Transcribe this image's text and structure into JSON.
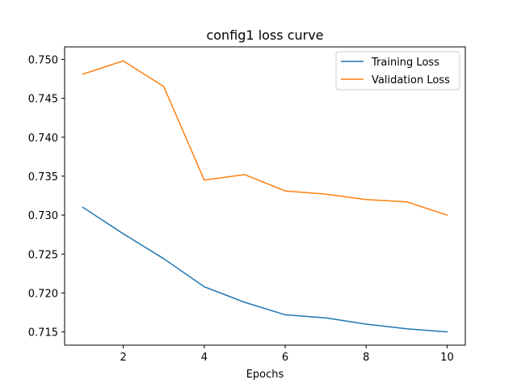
{
  "chart_data": {
    "type": "line",
    "title": "config1 loss curve",
    "xlabel": "Epochs",
    "ylabel": "",
    "xlim": [
      0.55,
      10.45
    ],
    "ylim": [
      0.7133,
      0.7516
    ],
    "x_ticks": [
      2,
      4,
      6,
      8,
      10
    ],
    "y_ticks": [
      0.715,
      0.72,
      0.725,
      0.73,
      0.735,
      0.74,
      0.745,
      0.75
    ],
    "y_tick_labels": [
      "0.715",
      "0.720",
      "0.725",
      "0.730",
      "0.735",
      "0.740",
      "0.745",
      "0.750"
    ],
    "grid": false,
    "legend_position": "top-right",
    "x": [
      1,
      2,
      3,
      4,
      5,
      6,
      7,
      8,
      9,
      10
    ],
    "series": [
      {
        "name": "Training Loss",
        "color": "#1f77b4",
        "values": [
          0.731,
          0.7276,
          0.7244,
          0.7208,
          0.7188,
          0.7172,
          0.7168,
          0.716,
          0.7154,
          0.715
        ]
      },
      {
        "name": "Validation Loss",
        "color": "#ff7f0e",
        "values": [
          0.7481,
          0.7498,
          0.7465,
          0.7345,
          0.7352,
          0.7331,
          0.7327,
          0.732,
          0.7317,
          0.73
        ]
      }
    ]
  }
}
